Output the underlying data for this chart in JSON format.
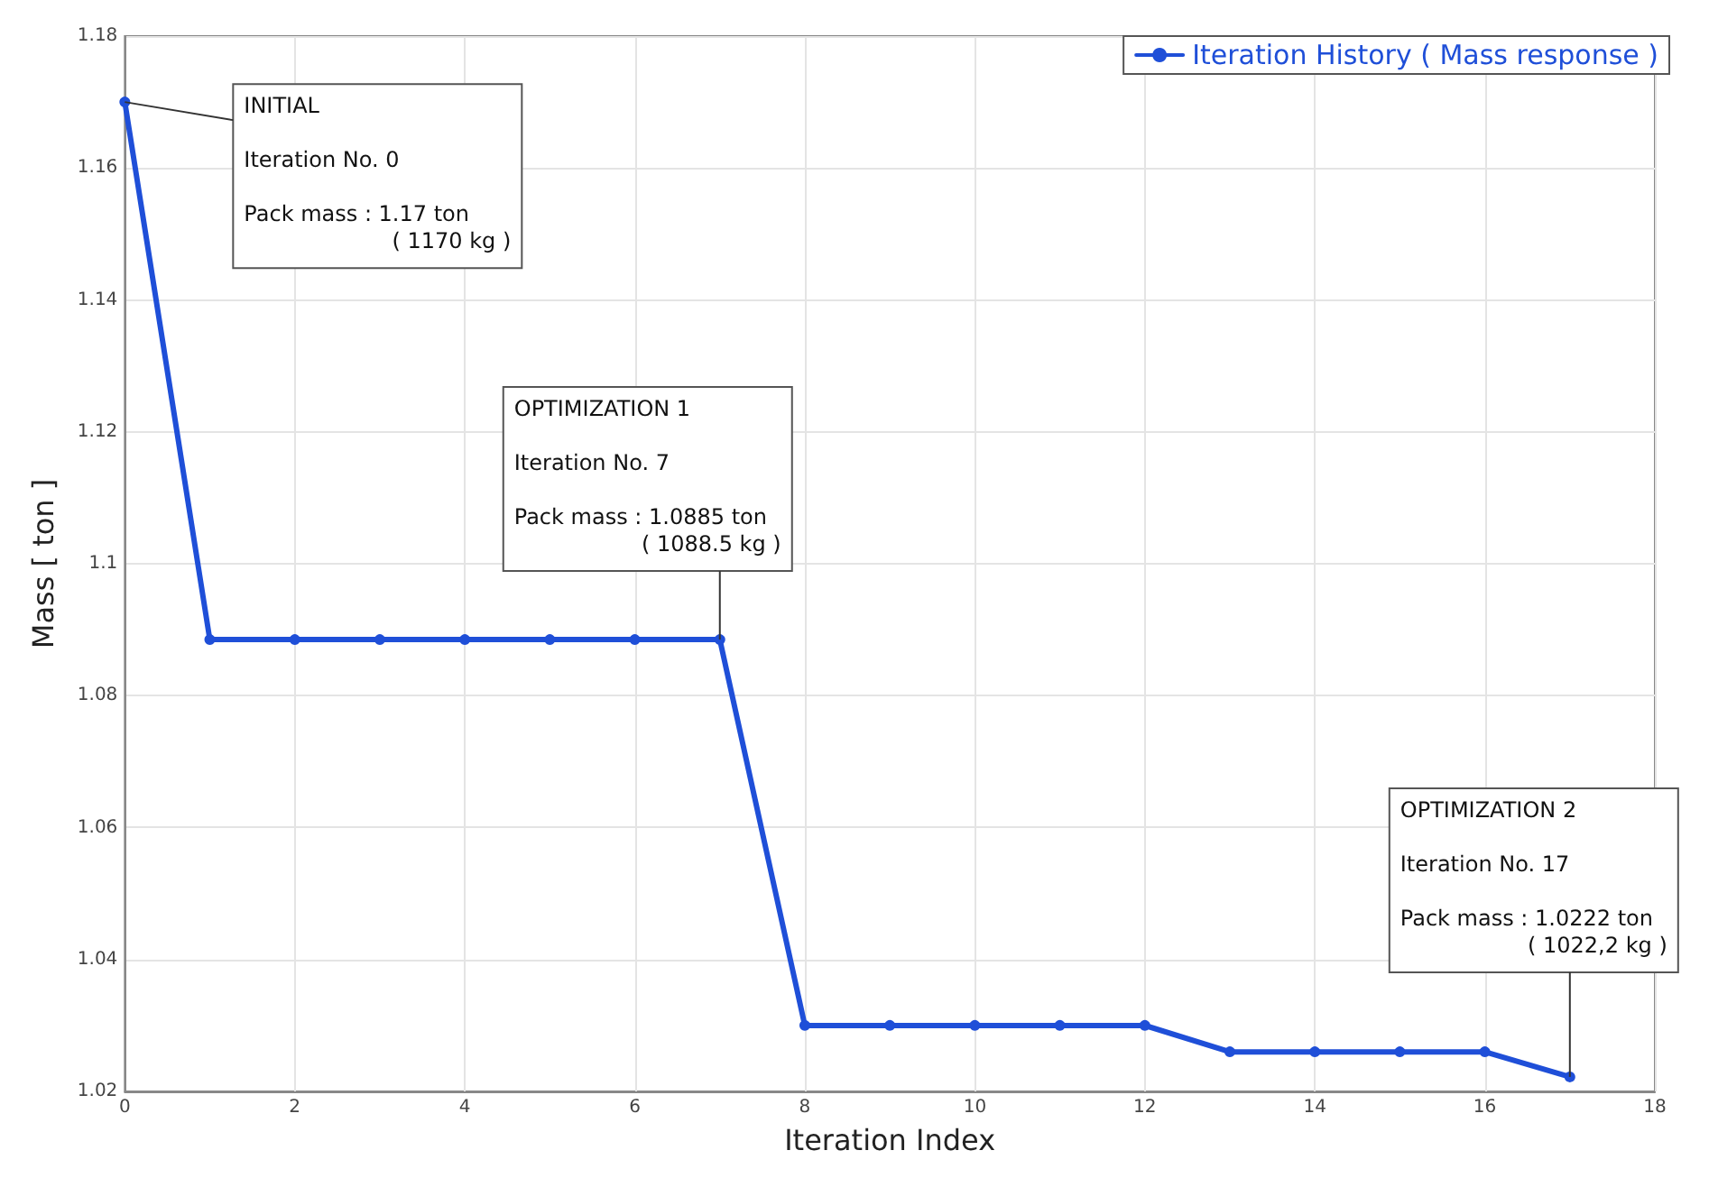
{
  "chart_data": {
    "type": "line",
    "xlabel": "Iteration Index",
    "ylabel": "Mass [ ton ]",
    "x": [
      0,
      1,
      2,
      3,
      4,
      5,
      6,
      7,
      8,
      9,
      10,
      11,
      12,
      13,
      14,
      15,
      16,
      17
    ],
    "series": [
      {
        "name": "Iteration History ( Mass response )",
        "color": "#1f4fd8",
        "values": [
          1.17,
          1.0885,
          1.0885,
          1.0885,
          1.0885,
          1.0885,
          1.0885,
          1.0885,
          1.03,
          1.03,
          1.03,
          1.03,
          1.03,
          1.026,
          1.026,
          1.026,
          1.026,
          1.0222
        ]
      }
    ],
    "xlim": [
      0,
      18
    ],
    "xticks": [
      0,
      2,
      4,
      6,
      8,
      10,
      12,
      14,
      16,
      18
    ],
    "ylim": [
      1.02,
      1.18
    ],
    "yticks": [
      1.02,
      1.04,
      1.06,
      1.08,
      1.1,
      1.12,
      1.14,
      1.16,
      1.18
    ],
    "grid": true,
    "legend": "top right",
    "marker": "circle",
    "line_style": "solid",
    "annotations": [
      {
        "text": "INITIAL",
        "x": 0,
        "y": 1.17
      },
      "Iteration No. 0",
      "Pack mass : 1.17 ton",
      "( 1170 kg )",
      "OPTIMIZATION 1",
      "Iteration No. 7",
      "Pack mass : 1.0885 ton",
      {
        "text": "( 1088.5 kg )",
        "x": 7,
        "y": 1.0885
      },
      "OPTIMIZATION 2",
      "Iteration No. 17",
      "Pack mass : 1.0222 ton",
      {
        "text": "( 1022,2 kg )",
        "x": 17,
        "y": 1.0222
      }
    ]
  }
}
